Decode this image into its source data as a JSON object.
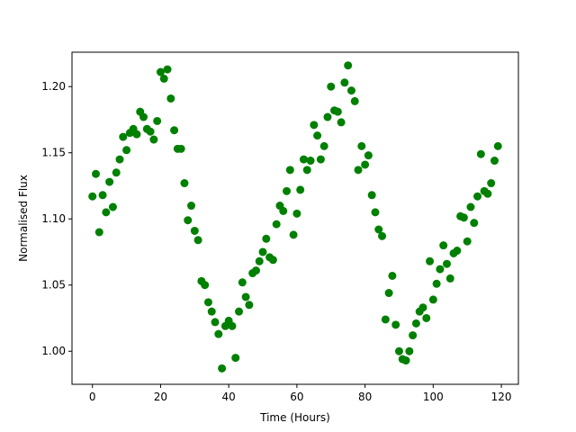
{
  "chart_data": {
    "type": "scatter",
    "title": "",
    "xlabel": "Time (Hours)",
    "ylabel": "Normalised Flux",
    "xlim": [
      -6,
      125
    ],
    "ylim": [
      0.975,
      1.226
    ],
    "xticks": [
      0,
      20,
      40,
      60,
      80,
      100,
      120
    ],
    "yticks": [
      1.0,
      1.05,
      1.1,
      1.15,
      1.2
    ],
    "xtick_labels": [
      "0",
      "20",
      "40",
      "60",
      "80",
      "100",
      "120"
    ],
    "ytick_labels": [
      "1.00",
      "1.05",
      "1.10",
      "1.15",
      "1.20"
    ],
    "grid": false,
    "marker_color": "#008000",
    "series": [
      {
        "x": [
          0,
          1,
          2,
          3,
          4,
          5,
          6,
          7,
          8,
          9,
          10,
          11,
          12,
          13,
          14,
          15,
          16,
          17,
          18,
          19,
          20,
          21,
          22,
          23,
          24,
          25,
          26,
          27,
          28,
          29,
          30,
          31,
          32,
          33,
          34,
          35,
          36,
          37,
          38,
          39,
          40,
          41,
          42,
          43,
          44,
          45,
          46,
          47,
          48,
          49,
          50,
          51,
          52,
          53,
          54,
          55,
          56,
          57,
          58,
          59,
          60,
          61,
          62,
          63,
          64,
          65,
          66,
          67,
          68,
          69,
          70,
          71,
          72,
          73,
          74,
          75,
          76,
          77,
          78,
          79,
          80,
          81,
          82,
          83,
          84,
          85,
          86,
          87,
          88,
          89,
          90,
          91,
          92,
          93,
          94,
          95,
          96,
          97,
          98,
          99,
          100,
          101,
          102,
          103,
          104,
          105,
          106,
          107,
          108,
          109,
          110,
          111,
          112,
          113,
          114,
          115,
          116,
          117,
          118,
          119
        ],
        "y": [
          1.117,
          1.134,
          1.09,
          1.118,
          1.105,
          1.128,
          1.109,
          1.135,
          1.145,
          1.162,
          1.152,
          1.165,
          1.168,
          1.164,
          1.181,
          1.177,
          1.168,
          1.166,
          1.16,
          1.174,
          1.211,
          1.206,
          1.213,
          1.191,
          1.167,
          1.153,
          1.153,
          1.127,
          1.099,
          1.11,
          1.091,
          1.084,
          1.053,
          1.05,
          1.037,
          1.03,
          1.022,
          1.013,
          0.987,
          1.019,
          1.023,
          1.019,
          0.995,
          1.03,
          1.052,
          1.041,
          1.035,
          1.059,
          1.061,
          1.068,
          1.075,
          1.085,
          1.071,
          1.069,
          1.096,
          1.11,
          1.106,
          1.121,
          1.137,
          1.088,
          1.104,
          1.122,
          1.145,
          1.137,
          1.144,
          1.171,
          1.163,
          1.145,
          1.155,
          1.177,
          1.2,
          1.182,
          1.181,
          1.173,
          1.203,
          1.216,
          1.197,
          1.189,
          1.137,
          1.155,
          1.141,
          1.148,
          1.118,
          1.105,
          1.092,
          1.087,
          1.024,
          1.044,
          1.057,
          1.02,
          1.0,
          0.994,
          0.993,
          1.0,
          1.012,
          1.021,
          1.03,
          1.033,
          1.025,
          1.068,
          1.039,
          1.051,
          1.062,
          1.08,
          1.066,
          1.055,
          1.074,
          1.076,
          1.102,
          1.101,
          1.083,
          1.109,
          1.097,
          1.117,
          1.149,
          1.121,
          1.119,
          1.127,
          1.144,
          1.155
        ]
      }
    ]
  }
}
